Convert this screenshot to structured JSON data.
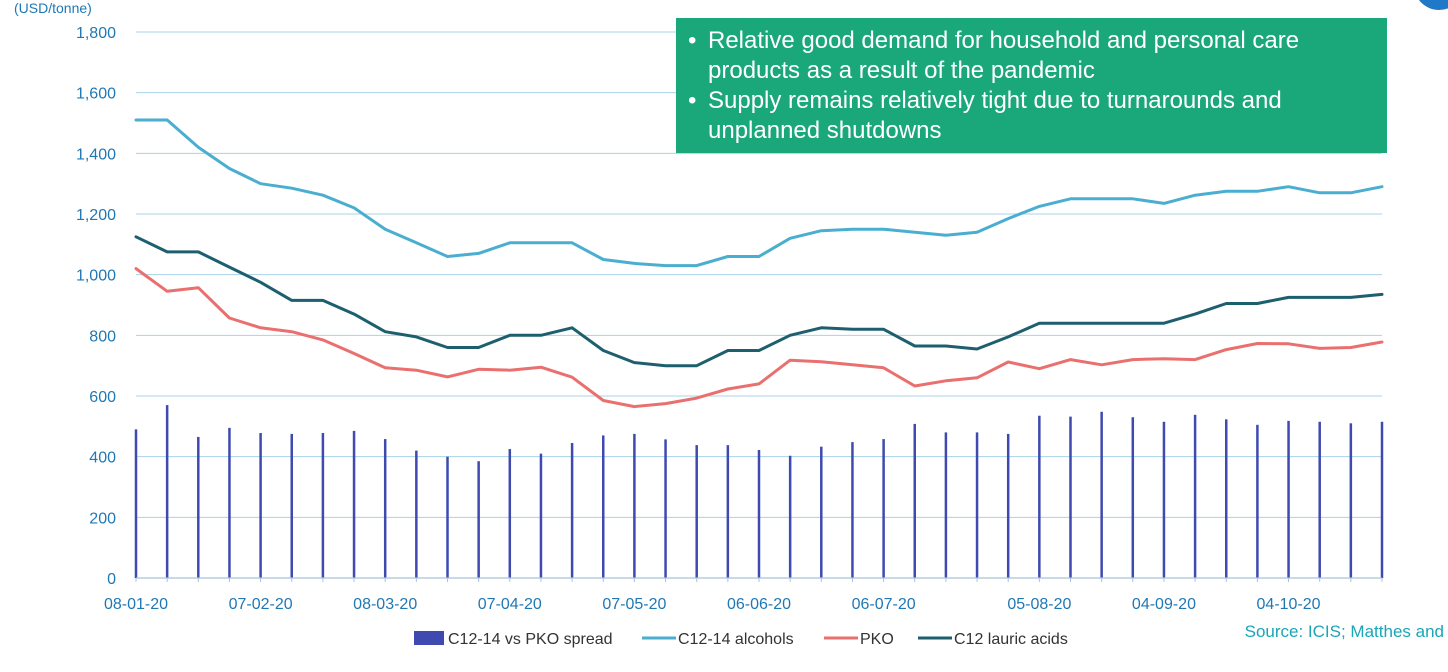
{
  "chart_data": {
    "type": "bar",
    "y_unit_label": "(USD/tonne)",
    "ylim": [
      0,
      1800
    ],
    "y_ticks": [
      0,
      200,
      400,
      600,
      800,
      1000,
      1200,
      1400,
      1600,
      1800
    ],
    "y_tick_labels": [
      "0",
      "200",
      "400",
      "600",
      "800",
      "1,000",
      "1,200",
      "1,400",
      "1,600",
      "1,800"
    ],
    "x_tick_labels": [
      "08-01-20",
      "07-02-20",
      "08-03-20",
      "07-04-20",
      "07-05-20",
      "06-06-20",
      "06-07-20",
      "05-08-20",
      "04-09-20",
      "04-10-20"
    ],
    "x_tick_positions": [
      0,
      4,
      8,
      12,
      16,
      20,
      24,
      29,
      33,
      37
    ],
    "n_points": 41,
    "grid": true,
    "legend_position": "bottom",
    "series": [
      {
        "name": "C12-14 vs PKO spread",
        "kind": "bar",
        "color": "#3f4ab0",
        "values": [
          490,
          570,
          465,
          495,
          478,
          475,
          478,
          485,
          458,
          420,
          400,
          385,
          425,
          410,
          445,
          470,
          475,
          457,
          438,
          438,
          422,
          403,
          433,
          448,
          458,
          508,
          480,
          480,
          475,
          535,
          532,
          548,
          530,
          515,
          538,
          523,
          505,
          518,
          515,
          510,
          515
        ]
      },
      {
        "name": "C12-14 alcohols",
        "kind": "line",
        "color": "#4aaed0",
        "values": [
          1510,
          1510,
          1420,
          1350,
          1300,
          1285,
          1262,
          1220,
          1150,
          1105,
          1060,
          1070,
          1105,
          1105,
          1105,
          1050,
          1037,
          1030,
          1030,
          1060,
          1060,
          1120,
          1145,
          1150,
          1150,
          1140,
          1130,
          1140,
          1185,
          1225,
          1250,
          1250,
          1250,
          1235,
          1262,
          1275,
          1275,
          1290,
          1270,
          1270,
          1290
        ]
      },
      {
        "name": "PKO",
        "kind": "line",
        "color": "#e9706e",
        "values": [
          1020,
          945,
          957,
          857,
          825,
          812,
          785,
          740,
          693,
          685,
          663,
          688,
          685,
          695,
          662,
          585,
          565,
          575,
          593,
          623,
          640,
          718,
          713,
          703,
          693,
          633,
          650,
          660,
          712,
          690,
          720,
          703,
          720,
          723,
          720,
          753,
          773,
          772,
          757,
          760,
          778
        ]
      },
      {
        "name": "C12 lauric acids",
        "kind": "line",
        "color": "#1d5f6e",
        "values": [
          1125,
          1075,
          1075,
          1025,
          975,
          915,
          915,
          870,
          812,
          795,
          760,
          760,
          800,
          800,
          825,
          750,
          710,
          700,
          700,
          750,
          750,
          800,
          825,
          820,
          820,
          765,
          765,
          755,
          795,
          840,
          840,
          840,
          840,
          840,
          870,
          905,
          905,
          925,
          925,
          925,
          935
        ]
      }
    ]
  },
  "callout": {
    "bullets": [
      "Relative good demand for household and personal care products as a result of the pandemic",
      "Supply remains relatively tight due to turnarounds and unplanned shutdowns"
    ]
  },
  "source_note": "Source: ICIS; Matthes and",
  "colors": {
    "axis_text": "#1f78b4",
    "grid": "#a9d3e8",
    "callout_bg": "#1aa87a",
    "source_text": "#1aa6b7"
  }
}
